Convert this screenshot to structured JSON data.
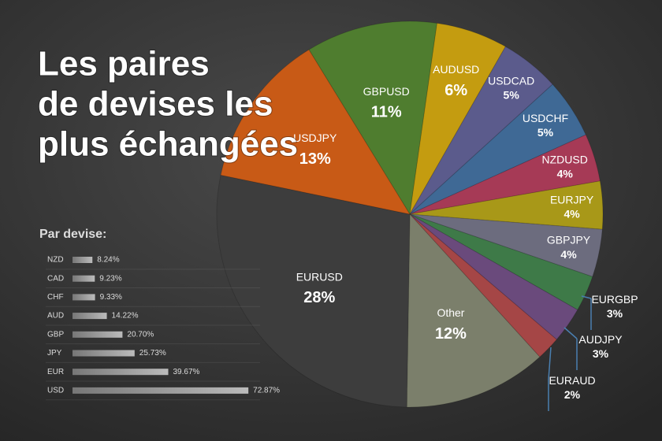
{
  "chart_data": [
    {
      "type": "pie",
      "title": [
        "Les paires",
        "de devises les",
        "plus échangées"
      ],
      "categories": [
        "GBPUSD",
        "AUDUSD",
        "USDCAD",
        "USDCHF",
        "NZDUSD",
        "EURJPY",
        "GBPJPY",
        "EURGBP",
        "AUDJPY",
        "EURAUD",
        "Other",
        "EURUSD",
        "USDJPY"
      ],
      "values": [
        11,
        6,
        5,
        5,
        4,
        4,
        4,
        3,
        3,
        2,
        12,
        28,
        13
      ],
      "value_labels": [
        "11%",
        "6%",
        "5%",
        "5%",
        "4%",
        "4%",
        "4%",
        "3%",
        "3%",
        "2%",
        "12%",
        "28%",
        "13%"
      ],
      "colors": [
        "#4f7d2f",
        "#c49c10",
        "#5b5b8c",
        "#3f6995",
        "#a63a56",
        "#a89818",
        "#6c6c7e",
        "#3e7a48",
        "#6a4a7c",
        "#a54646",
        "#7b7f6b",
        "#3d3d3d",
        "#c85a16"
      ]
    },
    {
      "type": "bar",
      "title": "Par devise:",
      "categories": [
        "NZD",
        "CAD",
        "CHF",
        "AUD",
        "GBP",
        "JPY",
        "EUR",
        "USD"
      ],
      "values": [
        8.24,
        9.23,
        9.33,
        14.22,
        20.7,
        25.73,
        39.67,
        72.87
      ],
      "value_labels": [
        "8.24%",
        "9.23%",
        "9.33%",
        "14.22%",
        "20.70%",
        "25.73%",
        "39.67%",
        "72.87%"
      ],
      "xlim": [
        0,
        80
      ]
    }
  ]
}
